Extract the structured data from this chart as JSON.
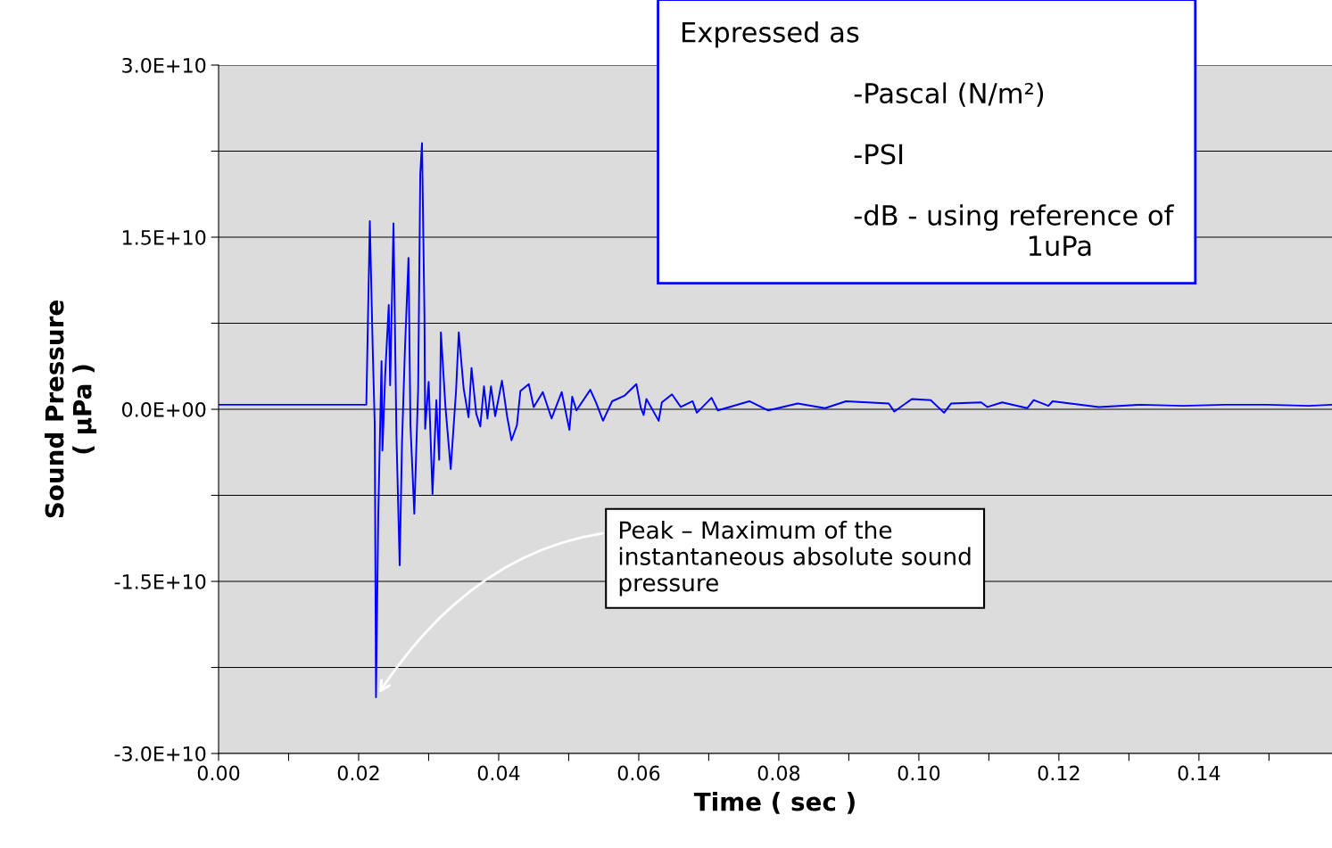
{
  "chart_data": {
    "type": "line",
    "xlabel": "Time ( sec )",
    "ylabel": "Sound Pressure\n( μPa )",
    "series": [
      {
        "color": "#0000ff",
        "x": [
          0,
          0.0211,
          0.0216,
          0.022,
          0.0223,
          0.02248,
          0.0228,
          0.02327,
          0.0234,
          0.0238,
          0.0243,
          0.0245,
          0.02498,
          0.0254,
          0.02586,
          0.0262,
          0.0266,
          0.02712,
          0.0274,
          0.02795,
          0.0285,
          0.0288,
          0.02905,
          0.0294,
          0.0295,
          0.03,
          0.03055,
          0.0311,
          0.0315,
          0.03175,
          0.0324,
          0.03315,
          0.0339,
          0.0343,
          0.035,
          0.0357,
          0.03612,
          0.0368,
          0.03737,
          0.0379,
          0.0384,
          0.0389,
          0.0395,
          0.04047,
          0.0412,
          0.04183,
          0.0426,
          0.0431,
          0.0443,
          0.045,
          0.0463,
          0.04755,
          0.049,
          0.0501,
          0.0505,
          0.0511,
          0.05308,
          0.0539,
          0.0549,
          0.0562,
          0.058,
          0.05966,
          0.0603,
          0.0607,
          0.0611,
          0.06285,
          0.0633,
          0.06475,
          0.066,
          0.0677,
          0.0683,
          0.0704,
          0.0713,
          0.0758,
          0.0785,
          0.0827,
          0.0866,
          0.0896,
          0.0957,
          0.0965,
          0.099,
          0.1017,
          0.1036,
          0.1046,
          0.1089,
          0.1098,
          0.1119,
          0.1155,
          0.1164,
          0.1185,
          0.1191,
          0.1257,
          0.1317,
          0.1377,
          0.1437,
          0.1497,
          0.1557,
          0.159
        ],
        "values": [
          400000000.0,
          400000000.0,
          16400000000.0,
          5600000000.0,
          -1360000000.0,
          -25100000000.0,
          -9300000000.0,
          4200000000.0,
          -3600000000.0,
          3100000000.0,
          9100000000.0,
          2100000000.0,
          16200000000.0,
          -2300000000.0,
          -13600000000.0,
          -2800000000.0,
          5000000000.0,
          13200000000.0,
          -1400000000.0,
          -9100000000.0,
          1800000000.0,
          20500000000.0,
          23200000000.0,
          8200000000.0,
          -1700000000.0,
          2400000000.0,
          -7400000000.0,
          800000000.0,
          -4400000000.0,
          6700000000.0,
          200000000.0,
          -5200000000.0,
          1500000000.0,
          6700000000.0,
          1800000000.0,
          -700000000.0,
          3600000000.0,
          -400000000.0,
          -1500000000.0,
          2000000000.0,
          -800000000.0,
          2000000000.0,
          -600000000.0,
          2500000000.0,
          -600000000.0,
          -2700000000.0,
          -1400000000.0,
          1600000000.0,
          2200000000.0,
          200000000.0,
          1500000000.0,
          -800000000.0,
          1500000000.0,
          -1800000000.0,
          1100000000.0,
          -100000000.0,
          1700000000.0,
          600000000.0,
          -1000000000.0,
          700000000.0,
          1200000000.0,
          2200000000.0,
          100000000.0,
          -500000000.0,
          900000000.0,
          -1000000000.0,
          600000000.0,
          1300000000.0,
          200000000.0,
          700000000.0,
          -300000000.0,
          1000000000.0,
          -100000000.0,
          700000000.0,
          -100000000.0,
          500000000.0,
          100000000.0,
          700000000.0,
          500000000.0,
          -200000000.0,
          900000000.0,
          800000000.0,
          -300000000.0,
          500000000.0,
          600000000.0,
          200000000.0,
          600000000.0,
          100000000.0,
          800000000.0,
          300000000.0,
          700000000.0,
          200000000.0,
          400000000.0,
          300000000.0,
          400000000.0,
          400000000.0,
          300000000.0,
          400000000.0
        ]
      }
    ],
    "xlim": [
      0,
      0.159
    ],
    "xticks": [
      {
        "value": 0,
        "label": "0.00"
      },
      {
        "value": 0.01,
        "label": null
      },
      {
        "value": 0.02,
        "label": "0.02"
      },
      {
        "value": 0.03,
        "label": null
      },
      {
        "value": 0.04,
        "label": "0.04"
      },
      {
        "value": 0.05,
        "label": null
      },
      {
        "value": 0.06,
        "label": "0.06"
      },
      {
        "value": 0.07,
        "label": null
      },
      {
        "value": 0.08,
        "label": "0.08"
      },
      {
        "value": 0.09,
        "label": null
      },
      {
        "value": 0.1,
        "label": "0.10"
      },
      {
        "value": 0.11,
        "label": null
      },
      {
        "value": 0.12,
        "label": "0.12"
      },
      {
        "value": 0.13,
        "label": null
      },
      {
        "value": 0.14,
        "label": "0.14"
      },
      {
        "value": 0.15,
        "label": null
      }
    ],
    "ylim": [
      -30000000000.0,
      30000000000.0
    ],
    "yticks": [
      {
        "value": -30000000000.0,
        "label": "-3.0E+10"
      },
      {
        "value": -22500000000.0,
        "label": null
      },
      {
        "value": -15000000000.0,
        "label": "-1.5E+10"
      },
      {
        "value": -7500000000.0,
        "label": null
      },
      {
        "value": 0,
        "label": "0.0E+00"
      },
      {
        "value": 7500000000.0,
        "label": null
      },
      {
        "value": 15000000000.0,
        "label": "1.5E+10"
      },
      {
        "value": 22500000000.0,
        "label": null
      },
      {
        "value": 30000000000.0,
        "label": "3.0E+10"
      }
    ],
    "grid": "y",
    "marker": "none",
    "line_style": "solid",
    "annotations": [
      "Expressed as\n\n                    -Pascal (N/m²)\n\n                    -PSI\n\n                    -dB - using reference of\n                                        1uPa",
      {
        "text": "Peak – Maximum of the\ninstantaneous absolute sound\npressure",
        "x": 0.0225,
        "y": -25100000000.0
      }
    ]
  }
}
